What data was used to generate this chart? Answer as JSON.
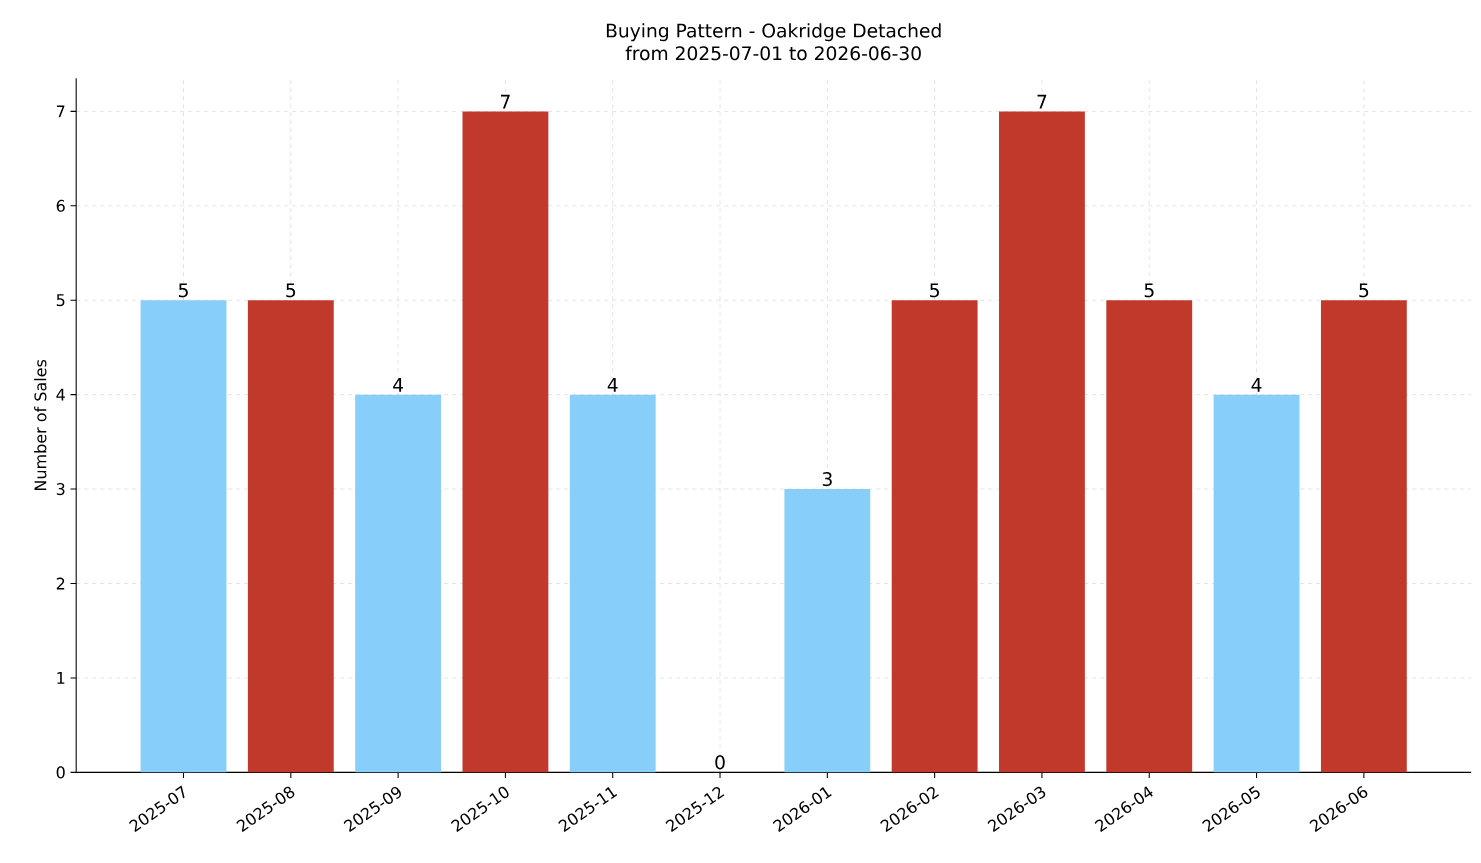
{
  "chart_data": {
    "type": "bar",
    "title": "Buying Pattern - Oakridge Detached",
    "subtitle": "from 2025-07-01 to 2026-06-30",
    "ylabel": "Number of Sales",
    "categories": [
      "2025-07",
      "2025-08",
      "2025-09",
      "2025-10",
      "2025-11",
      "2025-12",
      "2026-01",
      "2026-02",
      "2026-03",
      "2026-04",
      "2026-05",
      "2026-06"
    ],
    "values": [
      5,
      5,
      4,
      7,
      4,
      0,
      3,
      5,
      7,
      5,
      4,
      5
    ],
    "colors": [
      "#87cefa",
      "#c0392b",
      "#87cefa",
      "#c0392b",
      "#87cefa",
      "#c0392b",
      "#87cefa",
      "#c0392b",
      "#c0392b",
      "#c0392b",
      "#87cefa",
      "#c0392b"
    ],
    "ylim": [
      0,
      7.35
    ],
    "yticks": [
      0,
      1,
      2,
      3,
      4,
      5,
      6,
      7
    ],
    "grid": true,
    "data_labels": true
  }
}
